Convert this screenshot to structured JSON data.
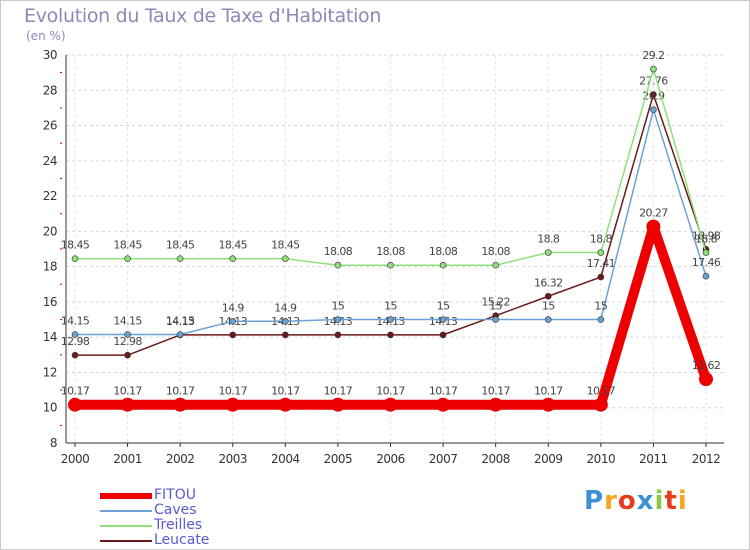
{
  "header": {
    "title": "Evolution du Taux de Taxe d'Habitation",
    "unit": "(en %)"
  },
  "logo": {
    "letters": [
      "P",
      "r",
      "o",
      "x",
      "i",
      "t",
      "i"
    ],
    "colors": [
      "#3b8fd4",
      "#f5a623",
      "#e63c1e",
      "#3b8fd4",
      "#8ec63f",
      "#e63c1e",
      "#f5a623"
    ]
  },
  "chart_data": {
    "type": "line",
    "title": "Evolution du Taux de Taxe d'Habitation",
    "ylabel": "(en %)",
    "xlabel": "",
    "x": [
      "2000",
      "2001",
      "2002",
      "2003",
      "2004",
      "2005",
      "2006",
      "2007",
      "2008",
      "2009",
      "2010",
      "2011",
      "2012"
    ],
    "ylim": [
      8,
      30
    ],
    "yticks": [
      8,
      10,
      12,
      14,
      16,
      18,
      20,
      22,
      24,
      26,
      28,
      30
    ],
    "grid": "horizontal-dashed",
    "legend_position": "bottom-left",
    "series": [
      {
        "name": "Leucate",
        "color": "#6b1a1a",
        "values": [
          12.98,
          12.98,
          14.13,
          14.13,
          14.13,
          14.13,
          14.13,
          14.13,
          15.22,
          16.32,
          17.41,
          27.76,
          18.98
        ],
        "labels": [
          "12.98",
          "12.98",
          "14.13",
          "14.13",
          "14.13",
          "14.13",
          "14.13",
          "14.13",
          "15.22",
          "16.32",
          "17.41",
          "27.76",
          "18.98"
        ]
      },
      {
        "name": "Caves",
        "color": "#6aa2d4",
        "values": [
          14.15,
          14.15,
          14.15,
          14.9,
          14.9,
          15,
          15,
          15,
          15,
          15,
          15,
          26.9,
          17.46
        ],
        "labels": [
          "14.15",
          "14.15",
          "14.15",
          "14.9",
          "14.9",
          "15",
          "15",
          "15",
          "15",
          "15",
          "15",
          "26.9",
          "17.46"
        ]
      },
      {
        "name": "Treilles",
        "color": "#8fe07a",
        "values": [
          18.45,
          18.45,
          18.45,
          18.45,
          18.45,
          18.08,
          18.08,
          18.08,
          18.08,
          18.8,
          18.8,
          29.2,
          18.8
        ],
        "labels": [
          "18.45",
          "18.45",
          "18.45",
          "18.45",
          "18.45",
          "18.08",
          "18.08",
          "18.08",
          "18.08",
          "18.8",
          "18.8",
          "29.2",
          "18.8"
        ]
      },
      {
        "name": "FITOU",
        "color": "#ee0000",
        "values": [
          10.17,
          10.17,
          10.17,
          10.17,
          10.17,
          10.17,
          10.17,
          10.17,
          10.17,
          10.17,
          10.17,
          20.27,
          11.62
        ],
        "labels": [
          "10.17",
          "10.17",
          "10.17",
          "10.17",
          "10.17",
          "10.17",
          "10.17",
          "10.17",
          "10.17",
          "10.17",
          "10.17",
          "20.27",
          "11.62"
        ]
      }
    ],
    "legend": [
      {
        "name": "FITOU",
        "color": "#ee0000"
      },
      {
        "name": "Caves",
        "color": "#6aa2d4"
      },
      {
        "name": "Treilles",
        "color": "#8fe07a"
      },
      {
        "name": "Leucate",
        "color": "#6b1a1a"
      }
    ]
  }
}
